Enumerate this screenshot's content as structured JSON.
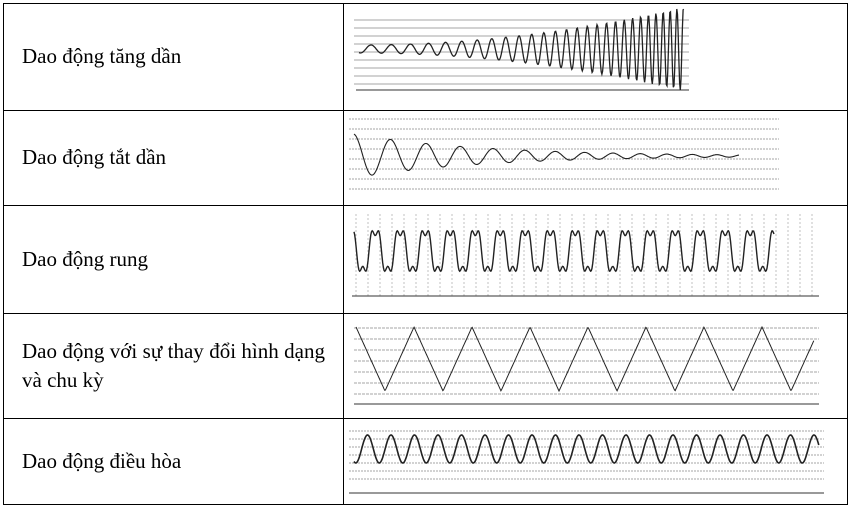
{
  "table": {
    "rows": [
      {
        "label": "Dao động tăng dần"
      },
      {
        "label": "Dao động tắt dần"
      },
      {
        "label": "Dao động rung"
      },
      {
        "label": "Dao động với sự thay đổi hình dạng và chu kỳ"
      },
      {
        "label": "Dao động điều hòa"
      }
    ]
  }
}
